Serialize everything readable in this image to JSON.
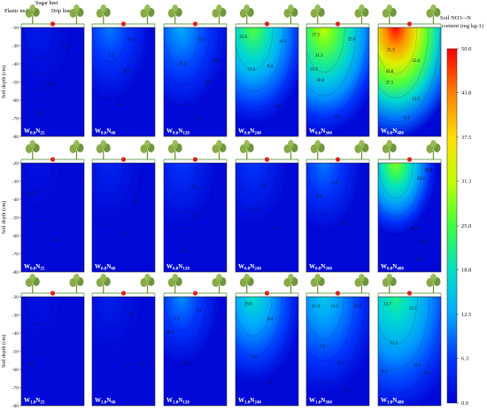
{
  "chart_data": {
    "type": "heatmap",
    "annotations": {
      "plant": "Sugar beet",
      "mulch": "Plastic mulch",
      "drip": "Drip line"
    },
    "ylabel": "Soil depth (cm)",
    "yticks": [
      "-20",
      "-30",
      "-40",
      "-50",
      "-60",
      "-70",
      "-80"
    ],
    "ylim": [
      -80,
      -20
    ],
    "colorbar": {
      "label_line1": "Soil NO3–-N",
      "label_line2": "content (mg kg-1)",
      "ticks": [
        "50.0",
        "43.8",
        "37.5",
        "31.3",
        "25.0",
        "18.8",
        "12.5",
        "6.3",
        "0.0"
      ],
      "range": [
        0,
        50
      ],
      "stops": [
        "#0000d0",
        "#0036ff",
        "#00a8ff",
        "#00e0c8",
        "#40ff40",
        "#c0ff00",
        "#ffe000",
        "#ff8000",
        "#ff0000"
      ]
    },
    "panels": [
      {
        "row": 0,
        "col": 0,
        "label": "W0.6N25",
        "hot": 0.04,
        "width": 0.3,
        "contours": [
          {
            "t": "5.2",
            "x": 0.7,
            "y": 0.18
          },
          {
            "t": "6.3",
            "x": 0.45,
            "y": 0.52
          },
          {
            "t": "5.2",
            "x": 0.3,
            "y": 0.78
          }
        ]
      },
      {
        "row": 0,
        "col": 1,
        "label": "W0.6N60",
        "hot": 0.18,
        "width": 0.45,
        "contours": [
          {
            "t": "11.5",
            "x": 0.62,
            "y": 0.1
          },
          {
            "t": "7.2",
            "x": 0.3,
            "y": 0.25
          },
          {
            "t": "8.4",
            "x": 0.55,
            "y": 0.4
          },
          {
            "t": "5.2",
            "x": 0.45,
            "y": 0.7
          }
        ]
      },
      {
        "row": 0,
        "col": 2,
        "label": "W0.6N120",
        "hot": 0.24,
        "width": 0.55,
        "contours": [
          {
            "t": "11.5",
            "x": 0.6,
            "y": 0.1
          },
          {
            "t": "15.8",
            "x": 0.82,
            "y": 0.3
          },
          {
            "t": "11.5",
            "x": 0.3,
            "y": 0.32
          },
          {
            "t": "9.2",
            "x": 0.7,
            "y": 0.5
          },
          {
            "t": "5.2",
            "x": 0.55,
            "y": 0.82
          }
        ]
      },
      {
        "row": 0,
        "col": 3,
        "label": "W0.6N240",
        "hot": 0.5,
        "width": 0.7,
        "contours": [
          {
            "t": "25.0",
            "x": 0.12,
            "y": 0.08
          },
          {
            "t": "11.5",
            "x": 0.75,
            "y": 0.12
          },
          {
            "t": "13.5",
            "x": 0.25,
            "y": 0.38
          },
          {
            "t": "8.4",
            "x": 0.55,
            "y": 0.35
          },
          {
            "t": "5.2",
            "x": 0.68,
            "y": 0.72
          }
        ]
      },
      {
        "row": 0,
        "col": 4,
        "label": "W0.6N360",
        "hot": 0.62,
        "width": 0.8,
        "contours": [
          {
            "t": "37.5",
            "x": 0.15,
            "y": 0.06
          },
          {
            "t": "31.3",
            "x": 0.2,
            "y": 0.25
          },
          {
            "t": "25.0",
            "x": 0.12,
            "y": 0.38
          },
          {
            "t": "18.8",
            "x": 0.22,
            "y": 0.48
          },
          {
            "t": "25.0",
            "x": 0.72,
            "y": 0.1
          },
          {
            "t": "8.5",
            "x": 0.5,
            "y": 0.82
          }
        ]
      },
      {
        "row": 0,
        "col": 5,
        "label": "W0.6N480",
        "hot": 1.0,
        "width": 0.85,
        "contours": [
          {
            "t": "31.3",
            "x": 0.2,
            "y": 0.2
          },
          {
            "t": "25.0",
            "x": 0.6,
            "y": 0.3
          },
          {
            "t": "43.8",
            "x": 0.18,
            "y": 0.4
          },
          {
            "t": "37.5",
            "x": 0.18,
            "y": 0.5
          },
          {
            "t": "12.5",
            "x": 0.6,
            "y": 0.65
          },
          {
            "t": "6.3",
            "x": 0.45,
            "y": 0.82
          }
        ]
      },
      {
        "row": 1,
        "col": 0,
        "label": "W0.8N25",
        "hot": 0.02,
        "width": 0.2,
        "contours": [
          {
            "t": "6.3",
            "x": 0.15,
            "y": 0.28
          },
          {
            "t": "5.2",
            "x": 0.55,
            "y": 0.7
          }
        ]
      },
      {
        "row": 1,
        "col": 1,
        "label": "W0.8N60",
        "hot": 0.06,
        "width": 0.3,
        "contours": [
          {
            "t": "7.2",
            "x": 0.68,
            "y": 0.35
          },
          {
            "t": "5.2",
            "x": 0.5,
            "y": 0.65
          }
        ]
      },
      {
        "row": 1,
        "col": 2,
        "label": "W0.8N120",
        "hot": 0.1,
        "width": 0.35,
        "contours": [
          {
            "t": "7.3",
            "x": 0.48,
            "y": 0.22
          },
          {
            "t": "7.2",
            "x": 0.5,
            "y": 0.48
          },
          {
            "t": "5.2",
            "x": 0.3,
            "y": 0.8
          }
        ]
      },
      {
        "row": 1,
        "col": 3,
        "label": "W0.8N240",
        "hot": 0.1,
        "width": 0.35,
        "contours": [
          {
            "t": "5.2",
            "x": 0.45,
            "y": 0.2
          },
          {
            "t": "7.3",
            "x": 0.3,
            "y": 0.42
          },
          {
            "t": "7.2",
            "x": 0.65,
            "y": 0.6
          }
        ]
      },
      {
        "row": 1,
        "col": 4,
        "label": "W0.8N360",
        "hot": 0.18,
        "width": 0.4,
        "contours": [
          {
            "t": "5.2",
            "x": 0.45,
            "y": 0.18
          },
          {
            "t": "5.2",
            "x": 0.6,
            "y": 0.55
          },
          {
            "t": "9.2",
            "x": 0.2,
            "y": 0.3
          }
        ]
      },
      {
        "row": 1,
        "col": 5,
        "label": "W0.8N480",
        "hot": 0.55,
        "width": 0.45,
        "contours": [
          {
            "t": "28.8",
            "x": 0.8,
            "y": 0.06
          },
          {
            "t": "24.0",
            "x": 0.68,
            "y": 0.14
          },
          {
            "t": "15.8",
            "x": 0.58,
            "y": 0.6
          },
          {
            "t": "13.5",
            "x": 0.72,
            "y": 0.72
          },
          {
            "t": "5.4",
            "x": 0.65,
            "y": 0.88
          }
        ]
      },
      {
        "row": 2,
        "col": 0,
        "label": "W1.0N25",
        "hot": 0.02,
        "width": 0.2,
        "contours": [
          {
            "t": "6.3",
            "x": 0.18,
            "y": 0.62
          }
        ]
      },
      {
        "row": 2,
        "col": 1,
        "label": "W1.0N60",
        "hot": 0.05,
        "width": 0.3,
        "contours": [
          {
            "t": "5.2",
            "x": 0.62,
            "y": 0.15
          },
          {
            "t": "5.2",
            "x": 0.55,
            "y": 0.62
          },
          {
            "t": "5.3",
            "x": 0.8,
            "y": 0.62
          }
        ]
      },
      {
        "row": 2,
        "col": 2,
        "label": "W1.0N120",
        "hot": 0.2,
        "width": 0.4,
        "contours": [
          {
            "t": "7.3",
            "x": 0.2,
            "y": 0.2
          },
          {
            "t": "10.4",
            "x": 0.1,
            "y": 0.32
          },
          {
            "t": "7.2",
            "x": 0.55,
            "y": 0.12
          },
          {
            "t": "8.2",
            "x": 0.35,
            "y": 0.6
          }
        ]
      },
      {
        "row": 2,
        "col": 3,
        "label": "W1.0N240",
        "hot": 0.36,
        "width": 0.6,
        "contours": [
          {
            "t": "19.8",
            "x": 0.2,
            "y": 0.06
          },
          {
            "t": "8.4",
            "x": 0.55,
            "y": 0.2
          },
          {
            "t": "5.2",
            "x": 0.3,
            "y": 0.55
          },
          {
            "t": "7.3",
            "x": 0.55,
            "y": 0.78
          }
        ]
      },
      {
        "row": 2,
        "col": 4,
        "label": "W1.0N360",
        "hot": 0.3,
        "width": 0.7,
        "contours": [
          {
            "t": "15.0",
            "x": 0.15,
            "y": 0.08
          },
          {
            "t": "11.5",
            "x": 0.45,
            "y": 0.08
          },
          {
            "t": "11.5",
            "x": 0.82,
            "y": 0.08
          },
          {
            "t": "7.2",
            "x": 0.25,
            "y": 0.45
          },
          {
            "t": "6.3",
            "x": 0.55,
            "y": 0.6
          },
          {
            "t": "9.3",
            "x": 0.65,
            "y": 0.85
          }
        ]
      },
      {
        "row": 2,
        "col": 5,
        "label": "W1.0N480",
        "hot": 0.42,
        "width": 0.9,
        "contours": [
          {
            "t": "13.7",
            "x": 0.15,
            "y": 0.06
          },
          {
            "t": "11.5",
            "x": 0.55,
            "y": 0.1
          },
          {
            "t": "11.5",
            "x": 0.25,
            "y": 0.42
          },
          {
            "t": "11.5",
            "x": 0.62,
            "y": 0.62
          },
          {
            "t": "17.5",
            "x": 0.78,
            "y": 0.7
          },
          {
            "t": "6.3",
            "x": 0.1,
            "y": 0.68
          }
        ]
      }
    ]
  }
}
